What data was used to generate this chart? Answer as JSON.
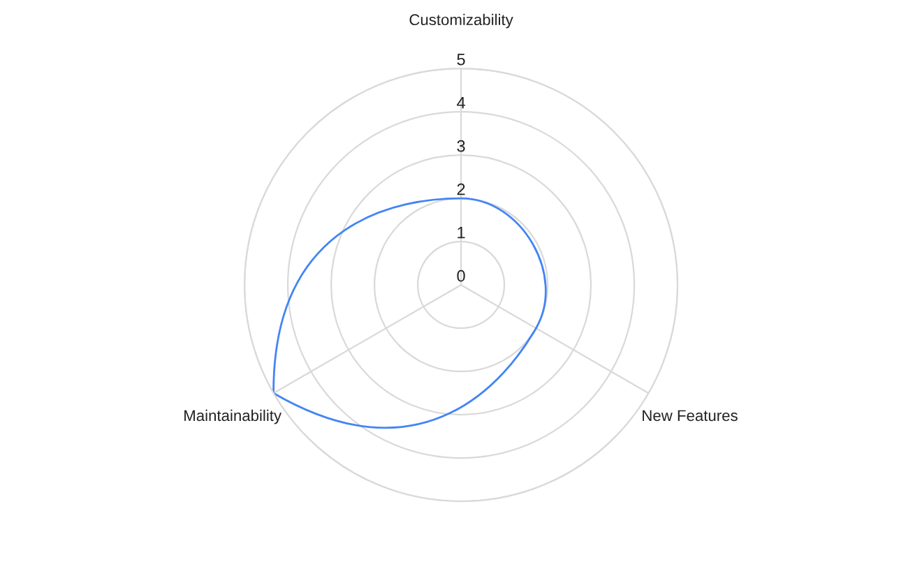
{
  "chart_data": {
    "type": "radar",
    "categories": [
      "Customizability",
      "New Features",
      "Maintainability"
    ],
    "series": [
      {
        "color": "#4285f4",
        "values": [
          2,
          2,
          5
        ]
      }
    ],
    "ylim": [
      0,
      5
    ],
    "yticks": [
      0,
      1,
      2,
      3,
      4,
      5
    ],
    "grid": true,
    "line_style": "solid"
  }
}
